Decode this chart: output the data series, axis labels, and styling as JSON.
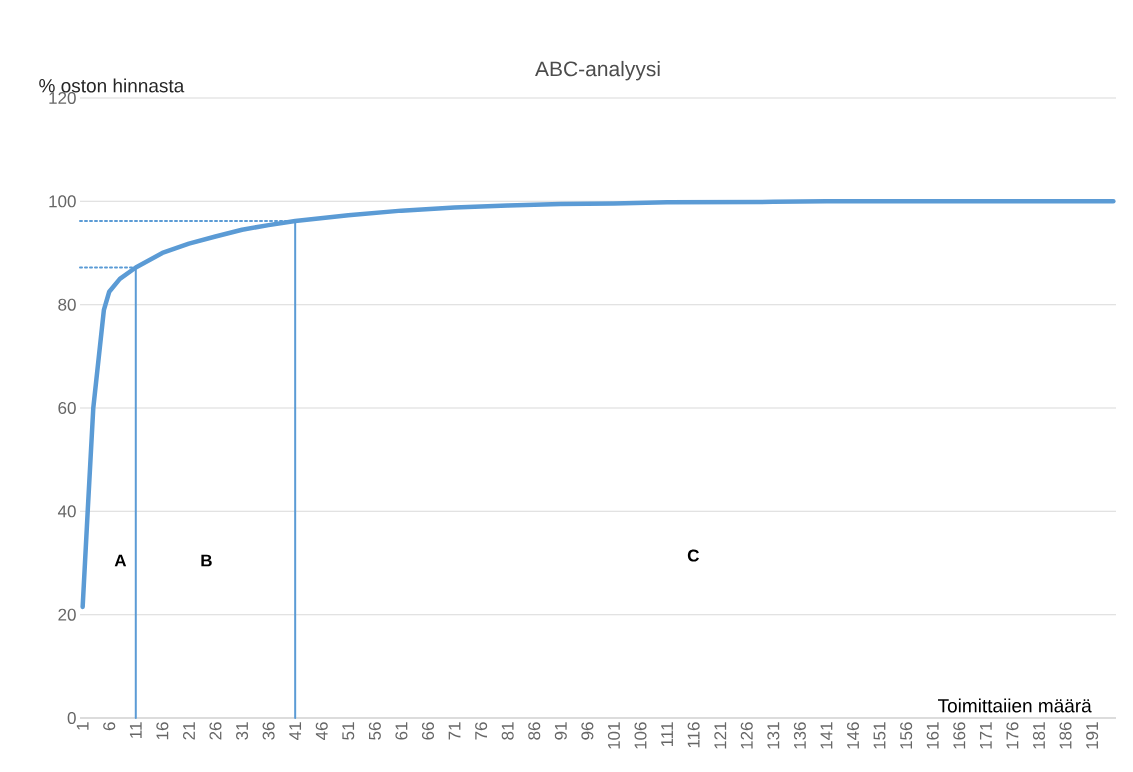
{
  "chart_data": {
    "type": "line",
    "title": "ABC-analyysi",
    "ylabel": "% oston hinnasta",
    "xlabel": "Toimittaiien määrä",
    "xlim": [
      0.5,
      195.5
    ],
    "xticks": [
      1,
      6,
      11,
      16,
      21,
      26,
      31,
      36,
      41,
      46,
      51,
      56,
      61,
      66,
      71,
      76,
      81,
      86,
      91,
      96,
      101,
      106,
      111,
      116,
      121,
      126,
      131,
      136,
      141,
      146,
      151,
      156,
      161,
      166,
      171,
      176,
      181,
      186,
      191
    ],
    "ylim": [
      0,
      120
    ],
    "yticks": [
      0,
      20,
      40,
      60,
      80,
      100,
      120
    ],
    "grid": "y",
    "series": [
      {
        "color": "#5b9bd5",
        "line_style": "solid",
        "x": [
          1,
          2,
          3,
          5,
          6,
          8,
          11,
          16,
          21,
          26,
          31,
          36,
          41,
          51,
          61,
          71,
          81,
          91,
          101,
          111,
          131,
          141,
          195
        ],
        "values": [
          21.5,
          41,
          60,
          79,
          82.5,
          85,
          87.2,
          90,
          91.8,
          93.2,
          94.5,
          95.4,
          96.2,
          97.3,
          98.2,
          98.8,
          99.2,
          99.5,
          99.6,
          99.8,
          99.9,
          100,
          100
        ]
      },
      {
        "color": "#5b9bd5",
        "line_style": "solid",
        "x": [
          11,
          11
        ],
        "values": [
          0,
          87.2
        ]
      },
      {
        "color": "#5b9bd5",
        "line_style": "solid",
        "x": [
          41,
          41
        ],
        "values": [
          0,
          96.2
        ]
      },
      {
        "color": "#5b9bd5",
        "line_style": "dotted",
        "x": [
          0.5,
          11
        ],
        "values": [
          87.2,
          87.2
        ]
      },
      {
        "color": "#5b9bd5",
        "line_style": "dotted",
        "x": [
          0.5,
          41
        ],
        "values": [
          96.2,
          96.2
        ]
      }
    ],
    "annotations": [
      "A",
      "B",
      "C"
    ]
  }
}
